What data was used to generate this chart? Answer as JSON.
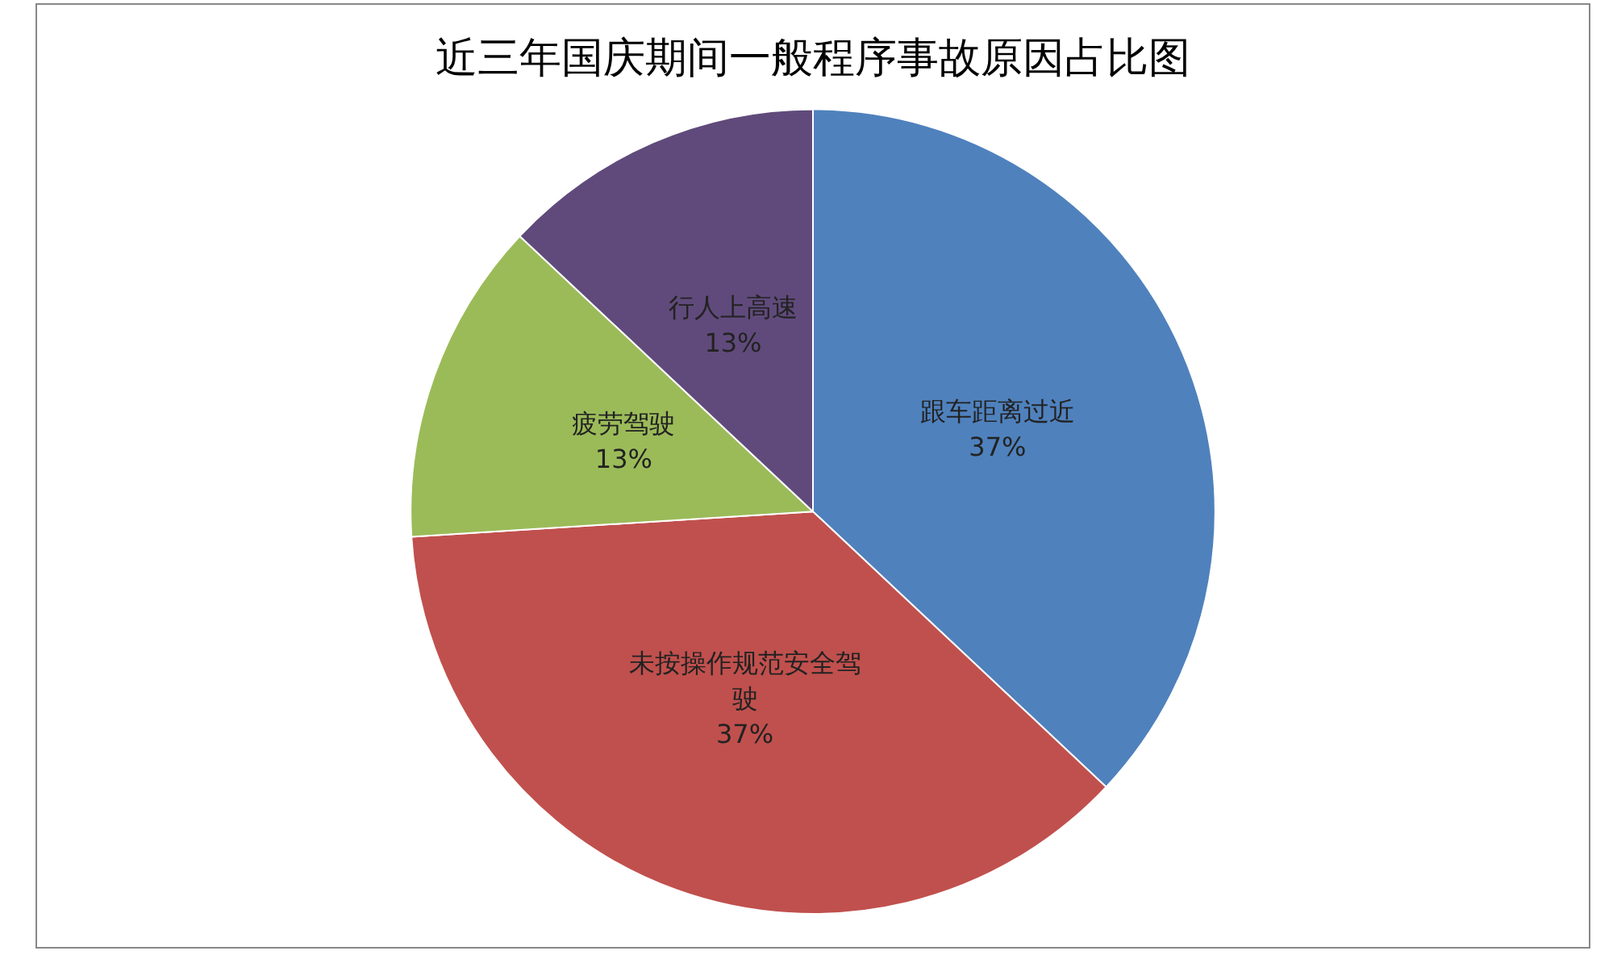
{
  "chart_data": {
    "type": "pie",
    "title": "近三年国庆期间一般程序事故原因占比图",
    "categories": [
      "跟车距离过近",
      "未按操作规范安全驾驶",
      "疲劳驾驶",
      "行人上高速"
    ],
    "values": [
      37,
      37,
      13,
      13
    ],
    "colors": [
      "#4f81bd",
      "#c0504d",
      "#9bbb59",
      "#604a7b"
    ],
    "value_labels": [
      "37%",
      "37%",
      "13%",
      "13%"
    ],
    "legend": false
  }
}
